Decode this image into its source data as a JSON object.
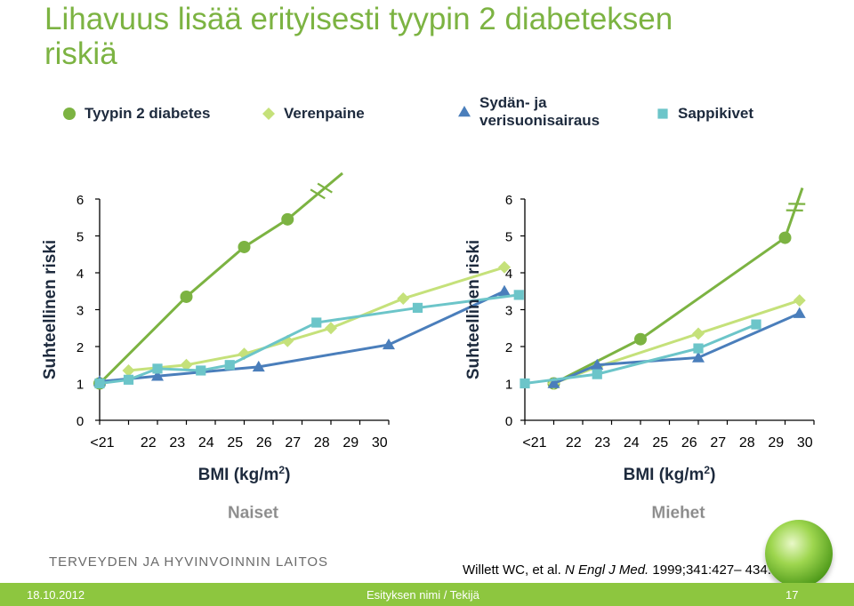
{
  "slide": {
    "title": "Lihavuus lisää erityisesti tyypin 2 diabeteksen riskiä",
    "organization": "TERVEYDEN JA HYVINVOINNIN LAITOS",
    "citation": {
      "pre": "Willett WC, et al. ",
      "journal": "N Engl J Med.",
      "post": " 1999;341:427– 434."
    },
    "footer": {
      "date": "18.10.2012",
      "presenter": "Esityksen nimi / Tekijä",
      "page": "17"
    }
  },
  "legend": [
    {
      "label_lines": [
        "Tyypin 2 diabetes"
      ],
      "marker": "circle",
      "color": "#7cb342"
    },
    {
      "label_lines": [
        "Verenpaine"
      ],
      "marker": "diamond",
      "color": "#c5e17a"
    },
    {
      "label_lines": [
        "Sydän- ja",
        "verisuonisairaus"
      ],
      "marker": "triangle",
      "color": "#4a7ebb"
    },
    {
      "label_lines": [
        "Sappikivet"
      ],
      "marker": "square",
      "color": "#6cc5c9"
    }
  ],
  "chart_data": [
    {
      "type": "line",
      "title": "Naiset",
      "xlabel": "BMI (kg/m",
      "xlabel_sup": "2",
      "xlabel_close": ")",
      "ylabel": "Suhteellinen riski",
      "categories": [
        "<21",
        "22",
        "23",
        "24",
        "25",
        "26",
        "27",
        "28",
        "29",
        "30"
      ],
      "ylim": [
        0,
        6
      ],
      "yticks": [
        0,
        1,
        2,
        3,
        4,
        5,
        6
      ],
      "series": [
        {
          "name": "Tyypin 2 diabetes",
          "marker": "circle",
          "color": "#7cb342",
          "points": [
            [
              0,
              1.0
            ],
            [
              3,
              3.35
            ],
            [
              5,
              4.7
            ],
            [
              6.5,
              5.45
            ]
          ],
          "break_to": [
            8.4,
            6.7
          ]
        },
        {
          "name": "Verenpaine",
          "marker": "diamond",
          "color": "#c5e17a",
          "points": [
            [
              1,
              1.35
            ],
            [
              3,
              1.5
            ],
            [
              5,
              1.8
            ],
            [
              6.5,
              2.15
            ],
            [
              8,
              2.5
            ],
            [
              10.5,
              3.3
            ],
            [
              14,
              4.15
            ]
          ]
        },
        {
          "name": "Sydän- ja verisuonisairaus",
          "marker": "triangle",
          "color": "#4a7ebb",
          "points": [
            [
              0,
              1.05
            ],
            [
              2,
              1.2
            ],
            [
              5.5,
              1.45
            ],
            [
              10,
              2.05
            ],
            [
              14,
              3.5
            ]
          ]
        },
        {
          "name": "Sappikivet",
          "marker": "square",
          "color": "#6cc5c9",
          "points": [
            [
              0,
              1.0
            ],
            [
              1,
              1.1
            ],
            [
              2,
              1.4
            ],
            [
              3.5,
              1.35
            ],
            [
              4.5,
              1.5
            ],
            [
              7.5,
              2.65
            ],
            [
              11,
              3.05
            ],
            [
              14.5,
              3.4
            ]
          ]
        }
      ]
    },
    {
      "type": "line",
      "title": "Miehet",
      "xlabel": "BMI (kg/m",
      "xlabel_sup": "2",
      "xlabel_close": ")",
      "ylabel": "Suhteellinen riski",
      "categories": [
        "<21",
        "22",
        "23",
        "24",
        "25",
        "26",
        "27",
        "28",
        "29",
        "30"
      ],
      "ylim": [
        0,
        6
      ],
      "yticks": [
        0,
        1,
        2,
        3,
        4,
        5,
        6
      ],
      "series": [
        {
          "name": "Tyypin 2 diabetes",
          "marker": "circle",
          "color": "#7cb342",
          "points": [
            [
              1,
              1.0
            ],
            [
              4,
              2.2
            ],
            [
              9,
              4.95
            ]
          ],
          "break_to": [
            9.6,
            6.3
          ]
        },
        {
          "name": "Verenpaine",
          "marker": "diamond",
          "color": "#c5e17a",
          "points": [
            [
              1,
              1.0
            ],
            [
              2.5,
              1.45
            ],
            [
              6,
              2.35
            ],
            [
              9.5,
              3.25
            ]
          ]
        },
        {
          "name": "Sydän- ja verisuonisairaus",
          "marker": "triangle",
          "color": "#4a7ebb",
          "points": [
            [
              1,
              1.0
            ],
            [
              2.5,
              1.5
            ],
            [
              6,
              1.7
            ],
            [
              9.5,
              2.9
            ]
          ]
        },
        {
          "name": "Sappikivet",
          "marker": "square",
          "color": "#6cc5c9",
          "points": [
            [
              0,
              1.0
            ],
            [
              2.5,
              1.25
            ],
            [
              6,
              1.95
            ],
            [
              8,
              2.6
            ]
          ]
        }
      ]
    }
  ]
}
